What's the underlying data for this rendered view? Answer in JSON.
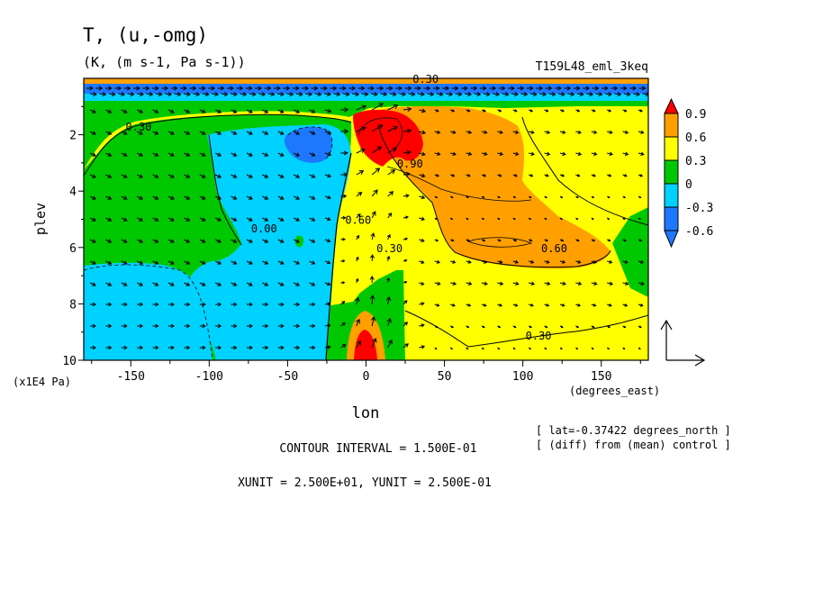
{
  "title": "T, (u,-omg)",
  "units": "(K, (m s-1, Pa s-1))",
  "run_label": "T159L48_eml_3keq",
  "xlabel": "lon",
  "ylabel": "plev",
  "y_unit_note": "(x1E4 Pa)",
  "x_unit_note": "(degrees_east)",
  "lat_note": "[ lat=-0.37422 degrees_north ]",
  "diff_note": "[ (diff) from (mean) control ]",
  "contour_note": "CONTOUR INTERVAL = 1.500E-01",
  "unit_note": "XUNIT = 2.500E+01, YUNIT = 2.500E-01",
  "chart_data": {
    "type": "heatmap",
    "title": "T, (u,-omg)",
    "subtitle": "(K, (m s-1, Pa s-1))",
    "xlabel": "lon",
    "ylabel": "plev",
    "xlim": [
      -180,
      180
    ],
    "ylim": [
      10,
      0
    ],
    "x_ticks": [
      -150,
      -100,
      -50,
      0,
      50,
      100,
      150
    ],
    "x_tick_labels": [
      "-150",
      "-100",
      "-50",
      "0",
      "50",
      "100",
      "150"
    ],
    "y_ticks": [
      2,
      4,
      6,
      8,
      10
    ],
    "y_tick_labels": [
      "2",
      "4",
      "6",
      "8",
      "10"
    ],
    "colorbar": {
      "levels": [
        -0.6,
        -0.3,
        0,
        0.3,
        0.6,
        0.9
      ],
      "labels": [
        "-0.6",
        "-0.3",
        "0",
        "0.3",
        "0.6",
        "0.9"
      ],
      "colors": [
        "#1e78ff",
        "#00d2ff",
        "#00c800",
        "#ffff00",
        "#ffa000",
        "#ff0000"
      ]
    },
    "contour_labels": [
      {
        "text": "0.30",
        "x": -145,
        "y": 1.7
      },
      {
        "text": "0.30",
        "x": 38,
        "y": 0.0
      },
      {
        "text": "0.00",
        "x": -65,
        "y": 5.3
      },
      {
        "text": "0.90",
        "x": 28,
        "y": 3.0
      },
      {
        "text": "0.60",
        "x": -5,
        "y": 5.0
      },
      {
        "text": "0.30",
        "x": 15,
        "y": 6.0
      },
      {
        "text": "0.60",
        "x": 120,
        "y": 6.0
      },
      {
        "text": "0.30",
        "x": 110,
        "y": 9.1
      }
    ],
    "fields": [
      {
        "name": "T",
        "units": "K"
      },
      {
        "name": "(u,-omg)",
        "units": "(m s-1, Pa s-1)"
      }
    ]
  }
}
